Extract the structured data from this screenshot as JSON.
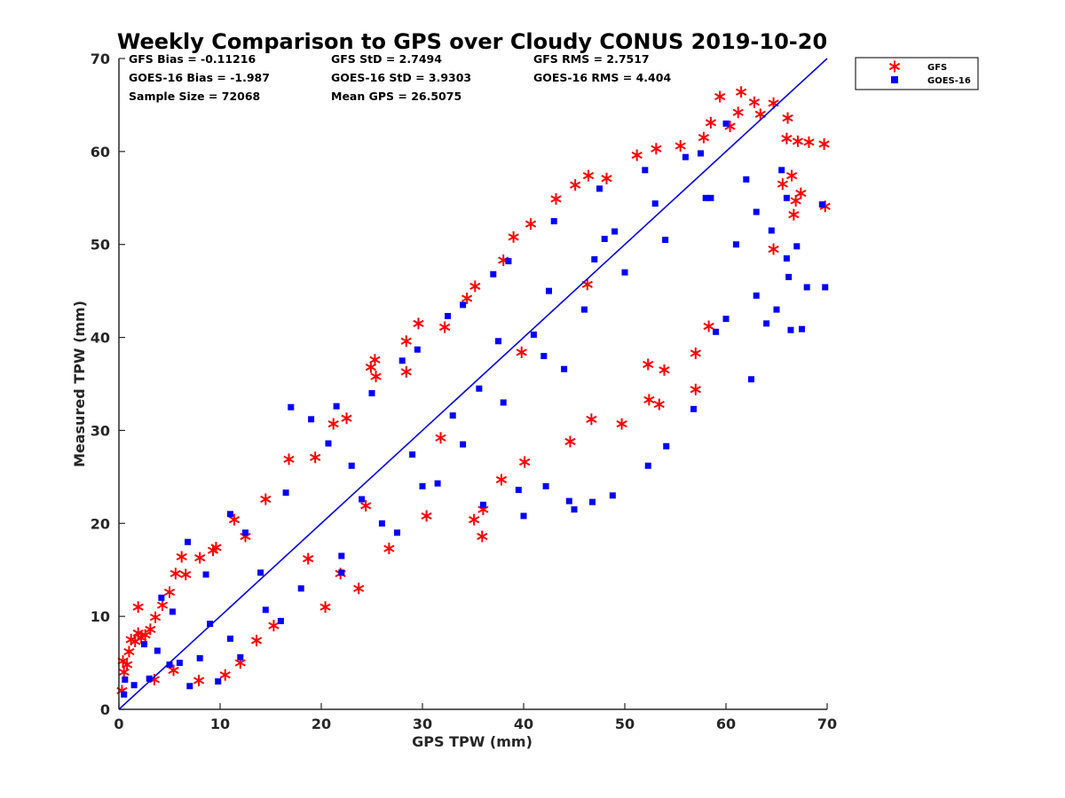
{
  "chart_data": {
    "type": "scatter",
    "title": "Weekly Comparison to GPS over Cloudy CONUS 2019-10-20",
    "xlabel": "GPS TPW (mm)",
    "ylabel": "Measured TPW (mm)",
    "xlim": [
      0,
      70
    ],
    "ylim": [
      0,
      70
    ],
    "xticks": [
      0,
      10,
      20,
      30,
      40,
      50,
      60,
      70
    ],
    "yticks": [
      0,
      10,
      20,
      30,
      40,
      50,
      60,
      70
    ],
    "grid": false,
    "legend_position": "outside top-right",
    "reference_line": {
      "x": [
        0,
        70
      ],
      "y": [
        0,
        70
      ],
      "color": "#0000ee"
    },
    "stats": [
      [
        "GFS Bias = -0.11216",
        "GFS StD = 2.7494",
        "GFS RMS = 2.7517"
      ],
      [
        "GOES-16 Bias = -1.987",
        "GOES-16 StD = 3.9303",
        "GOES-16 RMS = 4.404"
      ],
      [
        "Sample Size = 72068",
        "Mean GPS = 26.5075",
        ""
      ]
    ],
    "series": [
      {
        "name": "GFS",
        "marker": "asterisk",
        "color": "#ff0000",
        "points": [
          [
            0.3,
            2.0
          ],
          [
            0.4,
            5.2
          ],
          [
            0.5,
            4.0
          ],
          [
            0.8,
            4.8
          ],
          [
            1.0,
            6.2
          ],
          [
            1.2,
            7.5
          ],
          [
            1.6,
            7.3
          ],
          [
            1.9,
            8.2
          ],
          [
            1.9,
            11.0
          ],
          [
            2.2,
            7.7
          ],
          [
            2.6,
            8.0
          ],
          [
            3.1,
            8.6
          ],
          [
            3.6,
            9.9
          ],
          [
            4.3,
            11.2
          ],
          [
            5.0,
            12.6
          ],
          [
            5.6,
            14.6
          ],
          [
            6.2,
            16.4
          ],
          [
            6.6,
            14.5
          ],
          [
            8.0,
            16.3
          ],
          [
            9.3,
            17.1
          ],
          [
            9.6,
            17.4
          ],
          [
            11.4,
            20.4
          ],
          [
            12.5,
            18.6
          ],
          [
            14.5,
            22.6
          ],
          [
            16.8,
            26.9
          ],
          [
            19.4,
            27.1
          ],
          [
            21.2,
            30.7
          ],
          [
            22.5,
            31.3
          ],
          [
            24.9,
            36.8
          ],
          [
            25.3,
            37.6
          ],
          [
            25.4,
            35.8
          ],
          [
            28.4,
            39.6
          ],
          [
            28.4,
            36.3
          ],
          [
            29.6,
            41.5
          ],
          [
            32.2,
            41.1
          ],
          [
            34.4,
            44.2
          ],
          [
            35.2,
            45.5
          ],
          [
            38.0,
            48.3
          ],
          [
            39.0,
            50.8
          ],
          [
            40.7,
            52.2
          ],
          [
            43.2,
            54.9
          ],
          [
            45.1,
            56.4
          ],
          [
            46.4,
            57.4
          ],
          [
            48.2,
            57.1
          ],
          [
            51.2,
            59.6
          ],
          [
            53.1,
            60.3
          ],
          [
            55.5,
            60.6
          ],
          [
            57.8,
            61.5
          ],
          [
            58.5,
            63.1
          ],
          [
            59.4,
            65.9
          ],
          [
            60.4,
            62.7
          ],
          [
            61.2,
            64.2
          ],
          [
            61.5,
            66.4
          ],
          [
            62.8,
            65.3
          ],
          [
            63.4,
            64.0
          ],
          [
            64.7,
            65.2
          ],
          [
            66.1,
            63.6
          ],
          [
            66.0,
            61.4
          ],
          [
            67.1,
            61.1
          ],
          [
            68.2,
            61.0
          ],
          [
            69.7,
            60.8
          ],
          [
            66.5,
            57.4
          ],
          [
            65.6,
            56.5
          ],
          [
            67.4,
            55.5
          ],
          [
            69.8,
            54.1
          ],
          [
            66.7,
            53.2
          ],
          [
            66.9,
            54.7
          ],
          [
            64.7,
            49.5
          ],
          [
            58.3,
            41.2
          ],
          [
            57.0,
            38.3
          ],
          [
            57.0,
            34.4
          ],
          [
            53.9,
            36.5
          ],
          [
            53.4,
            32.8
          ],
          [
            52.3,
            37.1
          ],
          [
            52.4,
            33.3
          ],
          [
            49.7,
            30.7
          ],
          [
            46.7,
            31.2
          ],
          [
            44.6,
            28.8
          ],
          [
            40.1,
            26.6
          ],
          [
            37.8,
            24.7
          ],
          [
            36.0,
            21.5
          ],
          [
            35.9,
            18.6
          ],
          [
            35.1,
            20.4
          ],
          [
            30.4,
            20.8
          ],
          [
            26.7,
            17.3
          ],
          [
            23.7,
            13.0
          ],
          [
            20.4,
            11.0
          ],
          [
            21.9,
            14.6
          ],
          [
            10.5,
            3.7
          ],
          [
            12.0,
            5.0
          ],
          [
            15.3,
            9.0
          ],
          [
            13.6,
            7.4
          ],
          [
            7.9,
            3.1
          ],
          [
            5.4,
            4.2
          ],
          [
            3.5,
            3.2
          ],
          [
            18.7,
            16.2
          ],
          [
            24.4,
            21.9
          ],
          [
            31.8,
            29.2
          ],
          [
            39.8,
            38.4
          ],
          [
            46.3,
            45.7
          ]
        ]
      },
      {
        "name": "GOES-16",
        "marker": "square",
        "color": "#0000ff",
        "points": [
          [
            0.5,
            1.6
          ],
          [
            1.5,
            2.6
          ],
          [
            3.0,
            3.3
          ],
          [
            5.0,
            4.8
          ],
          [
            8.0,
            5.5
          ],
          [
            11.0,
            7.6
          ],
          [
            14.5,
            10.7
          ],
          [
            18.0,
            13.0
          ],
          [
            22.0,
            16.5
          ],
          [
            26.0,
            20.0
          ],
          [
            30.0,
            24.0
          ],
          [
            34.0,
            28.5
          ],
          [
            38.0,
            33.0
          ],
          [
            42.0,
            38.0
          ],
          [
            46.0,
            43.0
          ],
          [
            50.0,
            47.0
          ],
          [
            54.0,
            50.5
          ],
          [
            58.0,
            55.0
          ],
          [
            62.0,
            57.0
          ],
          [
            66.0,
            55.0
          ],
          [
            0.6,
            3.2
          ],
          [
            2.5,
            7.0
          ],
          [
            5.3,
            10.5
          ],
          [
            8.6,
            14.5
          ],
          [
            12.5,
            19.0
          ],
          [
            16.5,
            23.3
          ],
          [
            20.7,
            28.6
          ],
          [
            25.0,
            34.0
          ],
          [
            29.5,
            38.7
          ],
          [
            34.0,
            43.5
          ],
          [
            38.5,
            48.2
          ],
          [
            43.0,
            52.5
          ],
          [
            47.5,
            56.0
          ],
          [
            52.0,
            58.0
          ],
          [
            56.0,
            59.4
          ],
          [
            60.0,
            63.0
          ],
          [
            17.0,
            32.5
          ],
          [
            19.0,
            31.2
          ],
          [
            21.5,
            32.6
          ],
          [
            6.8,
            18.0
          ],
          [
            4.2,
            12.0
          ],
          [
            28.0,
            37.5
          ],
          [
            32.5,
            42.3
          ],
          [
            37.0,
            46.8
          ],
          [
            11.0,
            21.0
          ],
          [
            9.0,
            9.2
          ],
          [
            24.0,
            22.6
          ],
          [
            35.6,
            34.5
          ],
          [
            41.0,
            40.3
          ],
          [
            48.0,
            50.6
          ],
          [
            45.0,
            21.5
          ],
          [
            44.5,
            22.4
          ],
          [
            42.2,
            24.0
          ],
          [
            40.0,
            20.8
          ],
          [
            39.5,
            23.6
          ],
          [
            48.8,
            23.0
          ],
          [
            46.8,
            22.3
          ],
          [
            54.1,
            28.3
          ],
          [
            56.8,
            32.3
          ],
          [
            52.3,
            26.2
          ],
          [
            59.0,
            40.6
          ],
          [
            62.5,
            35.5
          ],
          [
            60.0,
            42.0
          ],
          [
            63.0,
            44.5
          ],
          [
            64.0,
            41.5
          ],
          [
            65.0,
            43.0
          ],
          [
            66.4,
            40.8
          ],
          [
            67.5,
            40.9
          ],
          [
            66.2,
            46.5
          ],
          [
            68.0,
            45.4
          ],
          [
            69.8,
            45.4
          ],
          [
            69.5,
            54.3
          ],
          [
            66.0,
            48.5
          ],
          [
            67.0,
            49.8
          ],
          [
            64.5,
            51.5
          ],
          [
            63.0,
            53.5
          ],
          [
            61.0,
            50.0
          ],
          [
            65.5,
            58.0
          ],
          [
            58.5,
            55.0
          ],
          [
            57.5,
            59.8
          ],
          [
            36.0,
            22.0
          ],
          [
            31.5,
            24.3
          ],
          [
            27.5,
            19.0
          ],
          [
            22.0,
            14.7
          ],
          [
            16.0,
            9.5
          ],
          [
            12.0,
            5.6
          ],
          [
            9.8,
            3.0
          ],
          [
            7.0,
            2.5
          ],
          [
            29.0,
            27.4
          ],
          [
            33.0,
            31.6
          ],
          [
            47.0,
            48.4
          ],
          [
            53.0,
            54.4
          ],
          [
            3.8,
            6.3
          ],
          [
            6.0,
            5.0
          ],
          [
            14.0,
            14.7
          ],
          [
            23.0,
            26.2
          ],
          [
            37.5,
            39.6
          ],
          [
            49.0,
            51.4
          ],
          [
            42.5,
            45.0
          ],
          [
            44.0,
            36.6
          ]
        ]
      }
    ]
  }
}
